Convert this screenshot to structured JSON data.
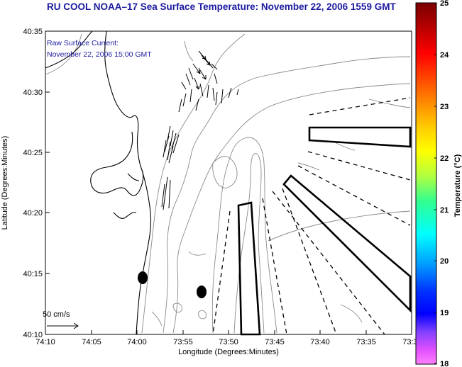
{
  "title": "RU COOL  NOAA–17  Sea Surface Temperature:  November 22, 2006 1559 GMT",
  "annotation": {
    "line1": "Raw Surface Current:",
    "line2": "November 22, 2006 15:00 GMT"
  },
  "scale_label": "50 cm/s",
  "axes": {
    "xlabel": "Longitude (Degrees:Minutes)",
    "ylabel": "Latitude (Degrees:Minutes)",
    "x_ticks": [
      "74:10",
      "74:05",
      "74:00",
      "73:55",
      "73:50",
      "73:45",
      "73:40",
      "73:35",
      "73:3"
    ],
    "y_ticks": [
      "40:35",
      "40:30",
      "40:25",
      "40:20",
      "40:15",
      "40:10"
    ]
  },
  "colorbar": {
    "label": "Temperature (°C)",
    "ticks": [
      "25",
      "24",
      "23",
      "22",
      "21",
      "20",
      "19",
      "18"
    ],
    "range": [
      18,
      25
    ]
  }
}
